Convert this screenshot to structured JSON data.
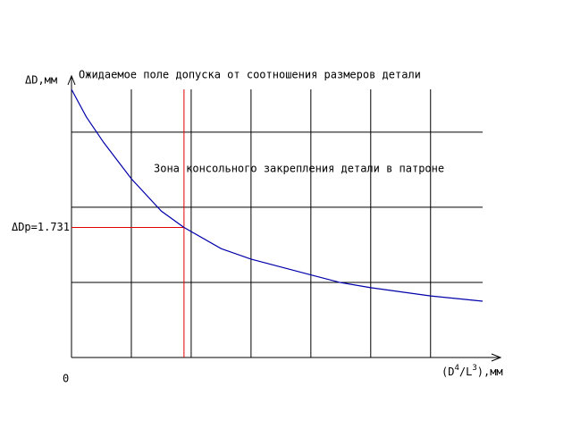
{
  "chart_data": {
    "type": "line",
    "title": "Ожидаемое поле допуска от соотношения размеров детали",
    "annotation": "Зона консольного закрепления детали в патроне",
    "y_label": "ΔD,мм",
    "x_label": [
      "(D",
      "4",
      "/L",
      "3",
      "),мм"
    ],
    "origin_label": "0",
    "xlim": [
      0,
      6.87
    ],
    "ylim": [
      0,
      3.57
    ],
    "xgrid": [
      1,
      2,
      3,
      4,
      5,
      6
    ],
    "ygrid": [
      1,
      2,
      3
    ],
    "marker": {
      "x": 1.88,
      "y": {
        "value": 1.731,
        "label": "ΔDp=1.731"
      },
      "color": "#e00000"
    },
    "series": [
      {
        "color": "#0000aa",
        "x": [
          0,
          0.25,
          0.54,
          1,
          1.5,
          1.88,
          2.5,
          3,
          4,
          4.48,
          5,
          6,
          6.87
        ],
        "values": [
          3.57,
          3.2,
          2.86,
          2.38,
          1.95,
          1.731,
          1.45,
          1.31,
          1.1,
          1.0,
          0.93,
          0.82,
          0.75
        ]
      }
    ]
  }
}
